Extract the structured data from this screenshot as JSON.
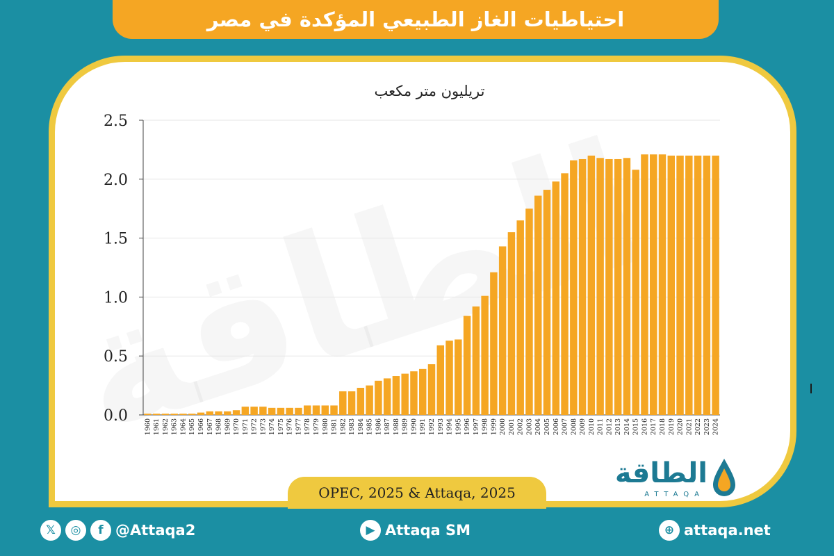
{
  "header": {
    "title": "احتياطيات الغاز الطبيعي المؤكدة في مصر"
  },
  "source": "OPEC, 2025 & Attaqa, 2025",
  "brand": {
    "name": "الطاقة",
    "sub": "ATTAQA",
    "watermark": "الطاقة"
  },
  "footer": {
    "social_handle": "@Attaqa2",
    "youtube": "Attaqa SM",
    "website": "attaqa.net"
  },
  "colors": {
    "bar": "#f5a623",
    "background": "#1b8fa3",
    "frame": "#efc93f"
  },
  "chart_data": {
    "type": "bar",
    "title": "تريليون متر مكعب",
    "xlabel": "",
    "ylabel": "",
    "ylim": [
      0,
      2.5
    ],
    "yticks": [
      "0.0",
      "0.5",
      "1.0",
      "1.5",
      "2.0",
      "2.5"
    ],
    "grid": true,
    "categories": [
      "1960",
      "1961",
      "1962",
      "1963",
      "1964",
      "1965",
      "1966",
      "1967",
      "1968",
      "1969",
      "1970",
      "1971",
      "1972",
      "1973",
      "1974",
      "1975",
      "1976",
      "1977",
      "1978",
      "1979",
      "1980",
      "1981",
      "1982",
      "1983",
      "1984",
      "1985",
      "1986",
      "1987",
      "1988",
      "1989",
      "1990",
      "1991",
      "1992",
      "1993",
      "1994",
      "1995",
      "1996",
      "1997",
      "1998",
      "1999",
      "2000",
      "2001",
      "2002",
      "2003",
      "2004",
      "2005",
      "2006",
      "2007",
      "2008",
      "2009",
      "2010",
      "2011",
      "2012",
      "2013",
      "2014",
      "2015",
      "2016",
      "2017",
      "2018",
      "2019",
      "2020",
      "2021",
      "2022",
      "2023",
      "2024"
    ],
    "values": [
      0.01,
      0.01,
      0.01,
      0.01,
      0.01,
      0.01,
      0.02,
      0.03,
      0.03,
      0.03,
      0.04,
      0.07,
      0.07,
      0.07,
      0.06,
      0.06,
      0.06,
      0.06,
      0.08,
      0.08,
      0.08,
      0.08,
      0.2,
      0.2,
      0.23,
      0.25,
      0.29,
      0.31,
      0.33,
      0.35,
      0.37,
      0.39,
      0.43,
      0.59,
      0.63,
      0.64,
      0.84,
      0.92,
      1.01,
      1.21,
      1.43,
      1.55,
      1.65,
      1.75,
      1.86,
      1.91,
      1.98,
      2.05,
      2.16,
      2.17,
      2.2,
      2.18,
      2.17,
      2.17,
      2.18,
      2.08,
      2.21,
      2.21,
      2.21,
      2.2,
      2.2,
      2.2,
      2.2,
      2.2,
      2.2
    ]
  }
}
